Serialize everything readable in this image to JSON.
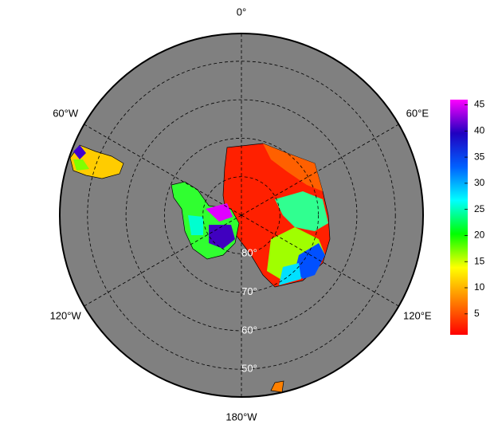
{
  "map": {
    "lon_labels": [
      {
        "value": 0,
        "label": "0°"
      },
      {
        "value": 60,
        "label": "60°E"
      },
      {
        "value": 120,
        "label": "120°E"
      },
      {
        "value": 180,
        "label": "180°W"
      },
      {
        "value": -120,
        "label": "120°W"
      },
      {
        "value": -60,
        "label": "60°W"
      }
    ],
    "lat_labels": [
      {
        "value": 80,
        "label": "80°"
      },
      {
        "value": 70,
        "label": "70°"
      },
      {
        "value": 60,
        "label": "60°"
      },
      {
        "value": 50,
        "label": "50°"
      }
    ],
    "colorbar": {
      "lim": [
        1,
        46
      ],
      "ticks": [
        5,
        10,
        15,
        20,
        25,
        30,
        35,
        40,
        45
      ],
      "colors": [
        "#ff0000",
        "#ff8000",
        "#ffff00",
        "#00ff00",
        "#00ffff",
        "#0060ff",
        "#2000c0",
        "#ff00ff"
      ]
    }
  }
}
